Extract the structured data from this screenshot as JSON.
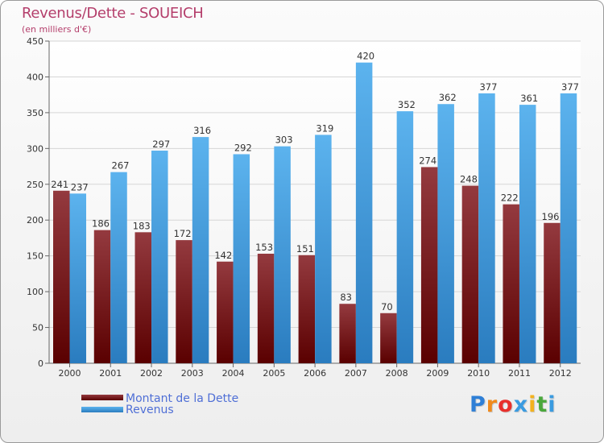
{
  "chart_data": {
    "type": "bar",
    "title": "Revenus/Dette - SOUEICH",
    "subtitle": "(en milliers d'€)",
    "categories": [
      "2000",
      "2001",
      "2002",
      "2003",
      "2004",
      "2005",
      "2006",
      "2007",
      "2008",
      "2009",
      "2010",
      "2011",
      "2012"
    ],
    "series": [
      {
        "name": "Montant de la Dette",
        "values": [
          241,
          186,
          183,
          172,
          142,
          153,
          151,
          83,
          70,
          274,
          248,
          222,
          196
        ],
        "color": "#7a1418"
      },
      {
        "name": "Revenus",
        "values": [
          237,
          267,
          297,
          316,
          292,
          303,
          319,
          420,
          352,
          362,
          377,
          361,
          377
        ],
        "color": "#3a9be0"
      }
    ],
    "yticks": [
      0,
      50,
      100,
      150,
      200,
      250,
      300,
      350,
      400,
      450
    ],
    "ylim": [
      0,
      450
    ],
    "grid": true,
    "legend": "bottom-left"
  },
  "logo": {
    "text": "Proxiti",
    "letters": [
      "P",
      "r",
      "o",
      "x",
      "i",
      "t",
      "i"
    ],
    "colors": [
      "#2e7fd6",
      "#f08a1c",
      "#e8302c",
      "#3a9be0",
      "#f3b21e",
      "#4aa83c",
      "#3a9be0"
    ]
  }
}
